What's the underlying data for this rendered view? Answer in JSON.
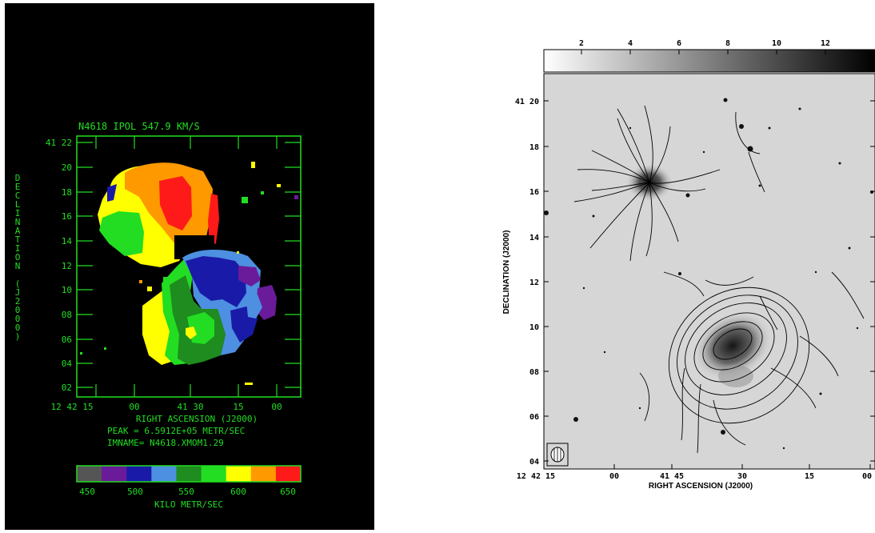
{
  "left_panel": {
    "title": "N4618 IPOL  547.9 KM/S",
    "ylabel": "DECLINATION (J2000)",
    "xlabel": "RIGHT ASCENSION (J2000)",
    "peak": "PEAK =  6.5912E+05 METR/SEC",
    "imname": "IMNAME= N4618.XMOM1.29",
    "yticks": [
      "41 22",
      "20",
      "18",
      "16",
      "14",
      "12",
      "10",
      "08",
      "06",
      "04",
      "02"
    ],
    "xticks": [
      "12 42 15",
      "00",
      "41 30",
      "15",
      "00"
    ],
    "colorbar": {
      "ticks": [
        "450",
        "500",
        "550",
        "600",
        "650"
      ],
      "label": "KILO METR/SEC",
      "colors": [
        "#555555",
        "#6a1b9a",
        "#1a1aa8",
        "#4d8fe0",
        "#1e8c1e",
        "#22dd22",
        "#ffff00",
        "#ff9900",
        "#ff1a1a"
      ]
    }
  },
  "right_panel": {
    "ylabel": "DECLINATION (J2000)",
    "xlabel": "RIGHT ASCENSION (J2000)",
    "yticks": [
      "41 20",
      "18",
      "16",
      "14",
      "12",
      "10",
      "08",
      "06",
      "04"
    ],
    "xticks": [
      "12 42 15",
      "00",
      "41 45",
      "30",
      "15",
      "00"
    ],
    "colorbar_ticks": [
      "2",
      "4",
      "6",
      "8",
      "10",
      "12"
    ]
  },
  "chart_data": [
    {
      "type": "heatmap",
      "title": "N4618 IPOL  547.9 KM/S",
      "xlabel": "RIGHT ASCENSION (J2000)",
      "ylabel": "DECLINATION (J2000)",
      "colorbar_label": "KILO METR/SEC",
      "colorbar_range": [
        450,
        650
      ],
      "colorbar_ticks": [
        450,
        500,
        550,
        600,
        650
      ],
      "peak": "6.5912E+05"
    },
    {
      "type": "heatmap",
      "xlabel": "RIGHT ASCENSION (J2000)",
      "ylabel": "DECLINATION (J2000)",
      "colorbar_ticks": [
        2,
        4,
        6,
        8,
        10,
        12
      ]
    }
  ]
}
